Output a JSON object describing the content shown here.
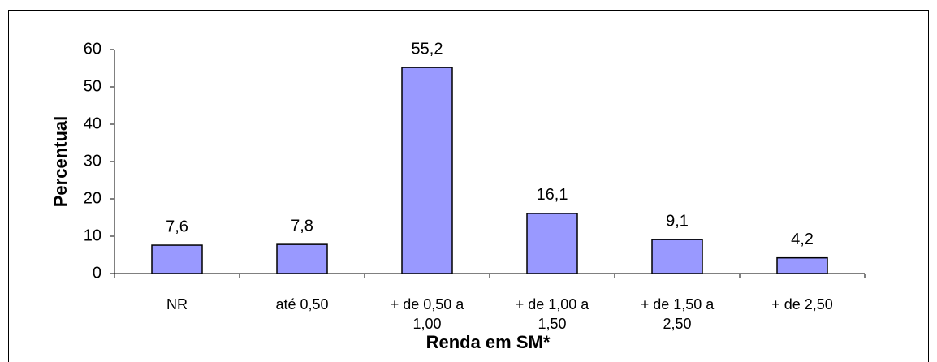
{
  "chart_data": {
    "type": "bar",
    "categories": [
      "NR",
      "até 0,50",
      "+ de 0,50 a 1,00",
      "+ de 1,00 a 1,50",
      "+ de 1,50 a 2,50",
      "+ de 2,50"
    ],
    "values": [
      7.6,
      7.8,
      55.2,
      16.1,
      9.1,
      4.2
    ],
    "value_labels": [
      "7,6",
      "7,8",
      "55,2",
      "16,1",
      "9,1",
      "4,2"
    ],
    "color": "#9999ff",
    "ylabel": "Percentual",
    "xlabel": "Renda em SM*",
    "ylim": [
      0,
      60
    ],
    "yticks": [
      0,
      10,
      20,
      30,
      40,
      50,
      60
    ],
    "grid": false
  }
}
